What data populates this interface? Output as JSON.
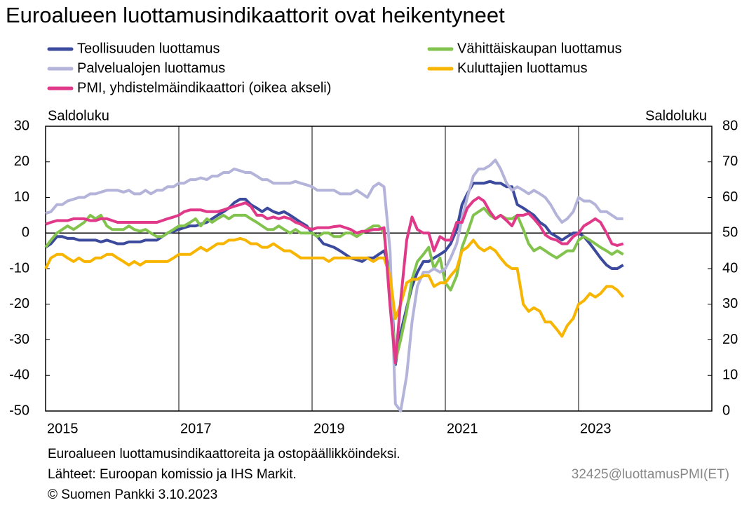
{
  "chart_data": {
    "type": "line",
    "title": "Euroalueen luottamusindikaattorit ovat heikentyneet",
    "y_label": "Saldoluku",
    "y2_label": "Saldoluku",
    "xlim": [
      2015,
      2025
    ],
    "xticks": [
      2015,
      2017,
      2019,
      2021,
      2023
    ],
    "ylim": [
      -50,
      30
    ],
    "yticks": [
      -50,
      -40,
      -30,
      -20,
      -10,
      0,
      10,
      20,
      30
    ],
    "y2lim": [
      0,
      80
    ],
    "y2ticks": [
      0,
      10,
      20,
      30,
      40,
      50,
      60,
      70,
      80
    ],
    "grid": true,
    "x": [
      2015.0,
      2015.08,
      2015.17,
      2015.25,
      2015.33,
      2015.42,
      2015.5,
      2015.58,
      2015.67,
      2015.75,
      2015.83,
      2015.92,
      2016.0,
      2016.08,
      2016.17,
      2016.25,
      2016.33,
      2016.42,
      2016.5,
      2016.58,
      2016.67,
      2016.75,
      2016.83,
      2016.92,
      2017.0,
      2017.08,
      2017.17,
      2017.25,
      2017.33,
      2017.42,
      2017.5,
      2017.58,
      2017.67,
      2017.75,
      2017.83,
      2017.92,
      2018.0,
      2018.08,
      2018.17,
      2018.25,
      2018.33,
      2018.42,
      2018.5,
      2018.58,
      2018.67,
      2018.75,
      2018.83,
      2018.92,
      2019.0,
      2019.08,
      2019.17,
      2019.25,
      2019.33,
      2019.42,
      2019.5,
      2019.58,
      2019.67,
      2019.75,
      2019.83,
      2019.92,
      2020.0,
      2020.08,
      2020.17,
      2020.25,
      2020.33,
      2020.42,
      2020.5,
      2020.58,
      2020.67,
      2020.75,
      2020.83,
      2020.92,
      2021.0,
      2021.08,
      2021.17,
      2021.25,
      2021.33,
      2021.42,
      2021.5,
      2021.58,
      2021.67,
      2021.75,
      2021.83,
      2021.92,
      2022.0,
      2022.08,
      2022.17,
      2022.25,
      2022.33,
      2022.42,
      2022.5,
      2022.58,
      2022.67,
      2022.75,
      2022.83,
      2022.92,
      2023.0,
      2023.08,
      2023.17,
      2023.25,
      2023.33,
      2023.42,
      2023.5,
      2023.58,
      2023.67
    ],
    "series": [
      {
        "name": "Teollisuuden luottamus",
        "color": "#3b4a9c",
        "values": [
          -4,
          -3,
          -1,
          -1,
          -1.5,
          -1.5,
          -2,
          -2,
          -2,
          -2,
          -2.5,
          -2,
          -2.5,
          -3,
          -3,
          -2.5,
          -2.5,
          -2.5,
          -2,
          -2,
          -2,
          -1,
          0,
          0.5,
          1,
          1.5,
          2,
          2,
          2.5,
          3,
          4,
          5,
          6,
          7,
          8.5,
          9.5,
          9.5,
          8,
          7,
          6,
          7,
          6,
          5.5,
          6,
          5,
          4,
          3,
          2,
          0,
          -1,
          -3,
          -3.5,
          -4,
          -5,
          -6,
          -7,
          -7.5,
          -8,
          -7,
          -7,
          -6,
          -5,
          -10,
          -37,
          -28,
          -21,
          -15,
          -11,
          -8,
          -8,
          -7,
          -6,
          -5,
          -3,
          1,
          8,
          11,
          14,
          14,
          14,
          14.5,
          14,
          14,
          13,
          13,
          8,
          7,
          6,
          5,
          3,
          2,
          0,
          -1,
          -2,
          -1,
          0,
          0,
          -1,
          -3,
          -5,
          -7,
          -9,
          -10,
          -10,
          -9
        ]
      },
      {
        "name": "Vähittäiskaupan luottamus",
        "color": "#82c34e",
        "values": [
          -4,
          -2,
          0,
          1,
          2,
          1,
          2,
          3,
          5,
          4,
          5,
          2,
          1,
          1,
          1,
          2,
          1,
          0.5,
          1,
          0,
          -1,
          -1,
          0,
          1,
          2,
          2,
          3,
          4,
          2,
          4,
          3,
          4,
          5,
          4,
          5,
          5,
          5,
          4,
          3,
          2,
          1,
          1,
          2,
          1,
          0,
          1,
          0,
          0,
          0,
          -1,
          0,
          0,
          -1,
          -1,
          0,
          0,
          -1,
          0,
          1,
          2,
          2,
          0,
          -15,
          -36,
          -30,
          -22,
          -13,
          -8,
          -6,
          -4,
          -10,
          -7,
          -14,
          -16,
          -12,
          -4,
          0,
          5,
          6,
          7,
          5,
          4,
          5,
          4,
          4,
          5,
          1,
          -3,
          -5,
          -4,
          -5,
          -6,
          -7,
          -6,
          -5,
          -5,
          -2,
          -1,
          -2,
          -3,
          -4,
          -5,
          -6,
          -5,
          -6
        ]
      },
      {
        "name": "Palvelualojen luottamus",
        "color": "#b4b4da",
        "values": [
          5.5,
          6,
          8,
          8,
          9,
          9.5,
          10,
          10,
          11,
          11,
          11.5,
          12,
          12,
          12,
          11.5,
          12,
          11,
          11,
          12,
          11,
          12,
          12,
          13,
          13,
          14,
          14,
          15,
          15,
          15.5,
          15,
          16,
          16,
          17,
          17,
          18,
          17.5,
          17,
          17,
          16,
          15,
          15,
          14,
          14,
          14,
          14,
          14.5,
          14,
          13.5,
          13,
          12,
          12,
          12,
          12,
          11,
          11,
          11,
          12,
          11,
          10,
          13,
          14,
          13,
          -5,
          -48,
          -50,
          -40,
          -25,
          -15,
          -11,
          -11,
          -10,
          -11,
          -10,
          -7,
          -3,
          4,
          10,
          16,
          18,
          18,
          19,
          20.5,
          18,
          14,
          12,
          13,
          12,
          11,
          12,
          11,
          10,
          8,
          5,
          3,
          4,
          6,
          10,
          9,
          9,
          8,
          6,
          6,
          5,
          4,
          4
        ]
      },
      {
        "name": "Kuluttajien luottamus",
        "color": "#f7b500",
        "values": [
          -10,
          -7,
          -6,
          -6,
          -7,
          -8,
          -7,
          -8,
          -8,
          -7,
          -7,
          -6,
          -6,
          -7,
          -8,
          -9,
          -8,
          -9,
          -8,
          -8,
          -8,
          -8,
          -8,
          -7,
          -6,
          -6,
          -6,
          -5,
          -4,
          -5,
          -4,
          -3,
          -3,
          -2,
          -2,
          -1.5,
          -2,
          -3,
          -3,
          -4,
          -4,
          -3,
          -4,
          -5,
          -5,
          -6,
          -7,
          -7,
          -7,
          -7,
          -7,
          -8,
          -7,
          -7,
          -7,
          -7,
          -7,
          -7,
          -7,
          -8,
          -7,
          -7,
          -12,
          -24,
          -20,
          -14,
          -13,
          -13,
          -12,
          -12,
          -15,
          -14,
          -14,
          -12,
          -10,
          -5,
          -4,
          -2,
          -4,
          -5,
          -4,
          -5,
          -7,
          -9,
          -10,
          -10,
          -20,
          -22,
          -21,
          -22,
          -25,
          -25,
          -27,
          -29,
          -26,
          -24,
          -20,
          -19,
          -17,
          -18,
          -17,
          -15,
          -15,
          -16,
          -18
        ]
      },
      {
        "name": "PMI, yhdistelmäindikaattori (oikea akseli)",
        "color": "#e0398a",
        "axis": "y2",
        "values": [
          52.5,
          53,
          53.5,
          53.5,
          53.5,
          54,
          54,
          54,
          53.5,
          53.5,
          54,
          54,
          53.5,
          53,
          53,
          53,
          53,
          53,
          53,
          53,
          53,
          53.5,
          54,
          54.5,
          55,
          56,
          56.5,
          56.5,
          56.5,
          56,
          56,
          56,
          56.5,
          57,
          57.5,
          58,
          58.5,
          57.5,
          55,
          55,
          54,
          54.5,
          54,
          54.5,
          54,
          53,
          52.5,
          51.5,
          51,
          51.5,
          51.5,
          51.5,
          51.8,
          52,
          51.5,
          51,
          50,
          50.5,
          50.5,
          51,
          51,
          51.5,
          29.5,
          13.5,
          31,
          48,
          54.5,
          51,
          50,
          50,
          45,
          49,
          48,
          48,
          53,
          53,
          57,
          59,
          60,
          59,
          56,
          54,
          55,
          53.5,
          52,
          55,
          55,
          55.5,
          54,
          52,
          49.5,
          48.5,
          48,
          47,
          47,
          49,
          50,
          52,
          53,
          54,
          53,
          50,
          47,
          46.5,
          47
        ]
      }
    ],
    "notes": [
      "Euroalueen luottamusindikaattoreita ja ostopäällikköindeksi.",
      "Lähteet: Euroopan komissio ja IHS Markit.",
      "© Suomen Pankki 3.10.2023"
    ],
    "source_code": "32425@luottamusPMI(ET)"
  }
}
